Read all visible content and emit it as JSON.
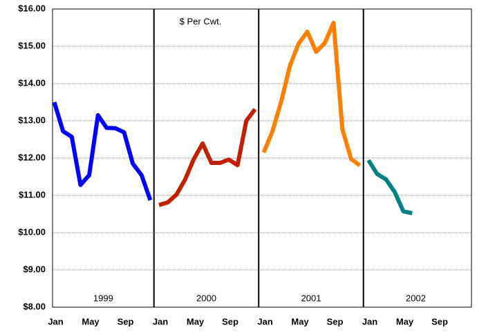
{
  "chart_data": {
    "type": "line",
    "title": "$ Per Cwt.",
    "categories": [
      "Jan",
      null,
      null,
      null,
      "May",
      null,
      null,
      null,
      "Sep",
      null,
      null,
      null,
      "Jan",
      null,
      null,
      null,
      "May",
      null,
      null,
      null,
      "Sep",
      null,
      null,
      null,
      "Jan",
      null,
      null,
      null,
      "May",
      null,
      null,
      null,
      "Sep",
      null,
      null,
      null,
      "Jan",
      null,
      null,
      null,
      "May",
      null,
      null,
      null,
      "Sep",
      null,
      null,
      null
    ],
    "panel_labels": [
      "1999",
      "2000",
      "2001",
      "2002"
    ],
    "series": [
      {
        "name": "1999",
        "color": "#0000ff",
        "values": [
          13.5,
          12.72,
          12.57,
          11.28,
          11.54,
          13.15,
          12.81,
          12.8,
          12.69,
          11.85,
          11.54,
          10.87,
          null,
          null,
          null,
          null,
          null,
          null,
          null,
          null,
          null,
          null,
          null,
          null,
          null,
          null,
          null,
          null,
          null,
          null,
          null,
          null,
          null,
          null,
          null,
          null,
          null,
          null,
          null,
          null,
          null,
          null,
          null,
          null,
          null,
          null,
          null,
          null
        ]
      },
      {
        "name": "2000",
        "color": "#c02000",
        "values": [
          null,
          null,
          null,
          null,
          null,
          null,
          null,
          null,
          null,
          null,
          null,
          null,
          10.74,
          10.81,
          11.02,
          11.43,
          11.98,
          12.39,
          11.87,
          11.87,
          11.96,
          11.81,
          13.0,
          13.31,
          null,
          null,
          null,
          null,
          null,
          null,
          null,
          null,
          null,
          null,
          null,
          null,
          null,
          null,
          null,
          null,
          null,
          null,
          null,
          null,
          null,
          null,
          null,
          null
        ]
      },
      {
        "name": "2001",
        "color": "#ff8000",
        "values": [
          null,
          null,
          null,
          null,
          null,
          null,
          null,
          null,
          null,
          null,
          null,
          null,
          null,
          null,
          null,
          null,
          null,
          null,
          null,
          null,
          null,
          null,
          null,
          null,
          12.15,
          12.72,
          13.52,
          14.48,
          15.07,
          15.39,
          14.85,
          15.09,
          15.63,
          12.78,
          11.98,
          11.8,
          null,
          null,
          null,
          null,
          null,
          null,
          null,
          null,
          null,
          null,
          null,
          null
        ]
      },
      {
        "name": "2002",
        "color": "#008080",
        "values": [
          null,
          null,
          null,
          null,
          null,
          null,
          null,
          null,
          null,
          null,
          null,
          null,
          null,
          null,
          null,
          null,
          null,
          null,
          null,
          null,
          null,
          null,
          null,
          null,
          null,
          null,
          null,
          null,
          null,
          null,
          null,
          null,
          null,
          null,
          null,
          null,
          11.94,
          11.57,
          11.43,
          11.09,
          10.57,
          10.52,
          null,
          null,
          null,
          null,
          null,
          null
        ]
      }
    ],
    "ylim": [
      8,
      16
    ],
    "yticks": [
      {
        "value": 8,
        "label": "$8.00"
      },
      {
        "value": 9,
        "label": "$9.00"
      },
      {
        "value": 10,
        "label": "$10.00"
      },
      {
        "value": 11,
        "label": "$11.00"
      },
      {
        "value": 12,
        "label": "$12.00"
      },
      {
        "value": 13,
        "label": "$13.00"
      },
      {
        "value": 14,
        "label": "$14.00"
      },
      {
        "value": 15,
        "label": "$15.00"
      },
      {
        "value": 16,
        "label": "$16.00"
      }
    ],
    "grid": true
  }
}
